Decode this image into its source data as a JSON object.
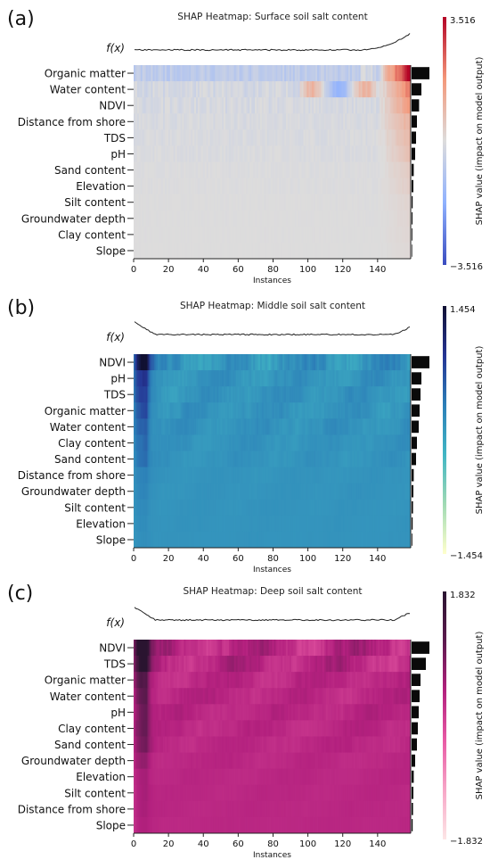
{
  "chart_data": [
    {
      "type": "heatmap",
      "panel_label": "(a)",
      "title": "SHAP Heatmap: Surface soil salt content",
      "fx_label": "f(x)",
      "xlabel": "Instances",
      "colorbar_label": "SHAP value (impact on model output)",
      "xticks": [
        0,
        20,
        40,
        60,
        80,
        100,
        120,
        140
      ],
      "xlim": [
        0,
        159
      ],
      "vmax": 3.516,
      "vmin": -3.516,
      "vmax_label": "3.516",
      "vmin_label": "−3.516",
      "colormap": [
        "#3a4cc0",
        "#8fb1fe",
        "#dddcdc",
        "#f4987a",
        "#b40426"
      ],
      "colormap_name": "coolwarm",
      "features": [
        "Organic matter",
        "Water content",
        "NDVI",
        "Distance from shore",
        "TDS",
        "pH",
        "Sand content",
        "Elevation",
        "Silt content",
        "Groundwater depth",
        "Clay content",
        "Slope"
      ],
      "importance": [
        1.0,
        0.55,
        0.42,
        0.3,
        0.25,
        0.2,
        0.12,
        0.1,
        0.06,
        0.05,
        0.04,
        0.03
      ]
    },
    {
      "type": "heatmap",
      "panel_label": "(b)",
      "title": "SHAP Heatmap: Middle soil salt content",
      "fx_label": "f(x)",
      "xlabel": "Instances",
      "colorbar_label": "SHAP value (impact on model output)",
      "xticks": [
        0,
        20,
        40,
        60,
        80,
        100,
        120,
        140
      ],
      "xlim": [
        0,
        159
      ],
      "vmax": 1.454,
      "vmin": -1.454,
      "vmax_label": "1.454",
      "vmin_label": "−1.454",
      "colormap": [
        "#ffffcc",
        "#a1dab4",
        "#41b6c4",
        "#2c7fb8",
        "#253494",
        "#111133"
      ],
      "colormap_name": "YlGnBu",
      "features": [
        "NDVI",
        "pH",
        "TDS",
        "Organic matter",
        "Water content",
        "Clay content",
        "Sand content",
        "Distance from shore",
        "Groundwater depth",
        "Silt content",
        "Elevation",
        "Slope"
      ],
      "importance": [
        1.0,
        0.55,
        0.5,
        0.45,
        0.4,
        0.3,
        0.25,
        0.12,
        0.1,
        0.08,
        0.06,
        0.04
      ]
    },
    {
      "type": "heatmap",
      "panel_label": "(c)",
      "title": "SHAP Heatmap: Deep soil salt content",
      "fx_label": "f(x)",
      "xlabel": "Instances",
      "colorbar_label": "SHAP value (impact on model output)",
      "xticks": [
        0,
        20,
        40,
        60,
        80,
        100,
        120,
        140
      ],
      "xlim": [
        0,
        159
      ],
      "vmax": 1.832,
      "vmin": -1.832,
      "vmax_label": "1.832",
      "vmin_label": "−1.832",
      "colormap": [
        "#fde6e6",
        "#f7a6c7",
        "#e85aa5",
        "#b3207e",
        "#5c1a4e",
        "#2a1430"
      ],
      "colormap_name": "RdPu",
      "features": [
        "NDVI",
        "TDS",
        "Organic matter",
        "Water content",
        "pH",
        "Clay content",
        "Sand content",
        "Groundwater depth",
        "Elevation",
        "Silt content",
        "Distance from shore",
        "Slope"
      ],
      "importance": [
        1.0,
        0.8,
        0.5,
        0.45,
        0.4,
        0.35,
        0.3,
        0.2,
        0.12,
        0.1,
        0.08,
        0.06
      ]
    }
  ]
}
